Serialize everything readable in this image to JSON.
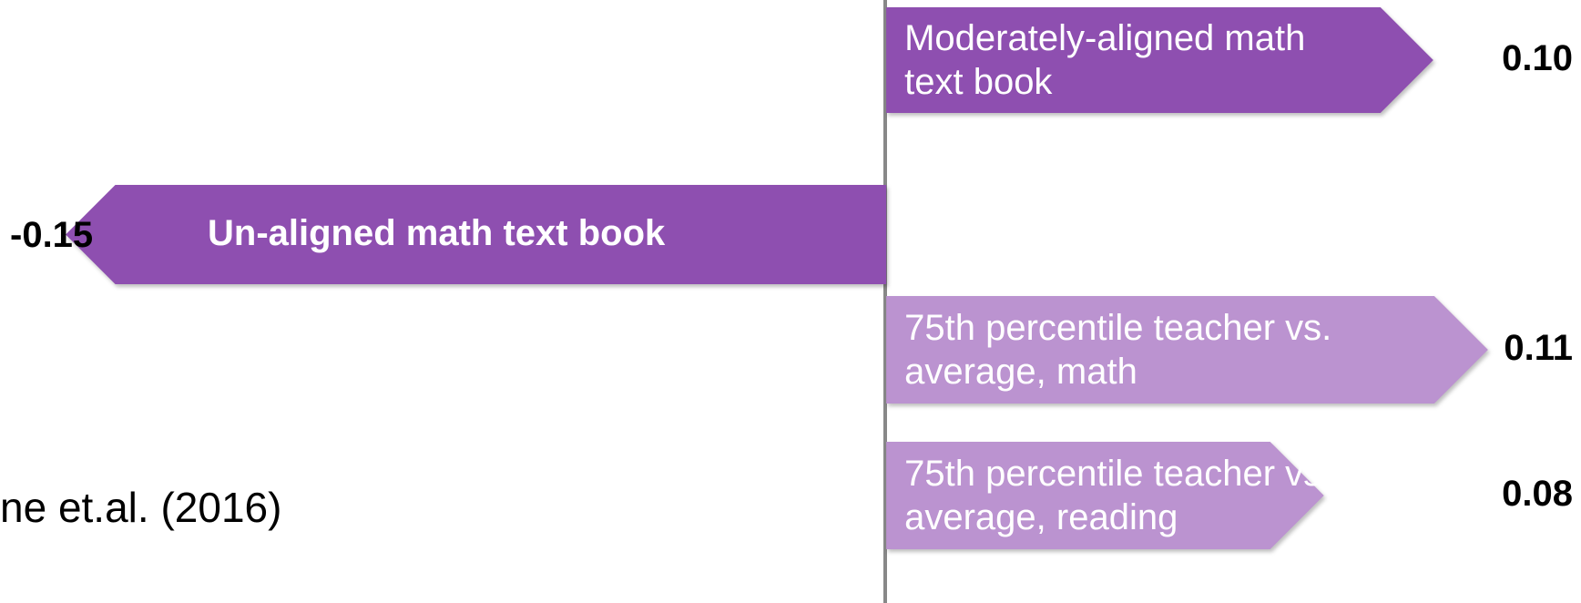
{
  "chart_data": {
    "type": "bar",
    "orientation": "horizontal",
    "categories": [
      "Moderately-aligned math text book",
      "Un-aligned math text book",
      "75th percentile teacher vs. average, math",
      "75th percentile teacher vs. average, reading"
    ],
    "values": [
      0.1,
      -0.15,
      0.11,
      0.08
    ],
    "value_labels": [
      "0.10",
      "-0.15",
      "0.11",
      "0.08"
    ],
    "colors": [
      "#8e4fb0",
      "#8e4fb0",
      "#bb93d0",
      "#bb93d0"
    ],
    "xlim": [
      -0.162,
      0.127
    ]
  },
  "side_text": "ne et.al. (2016)"
}
